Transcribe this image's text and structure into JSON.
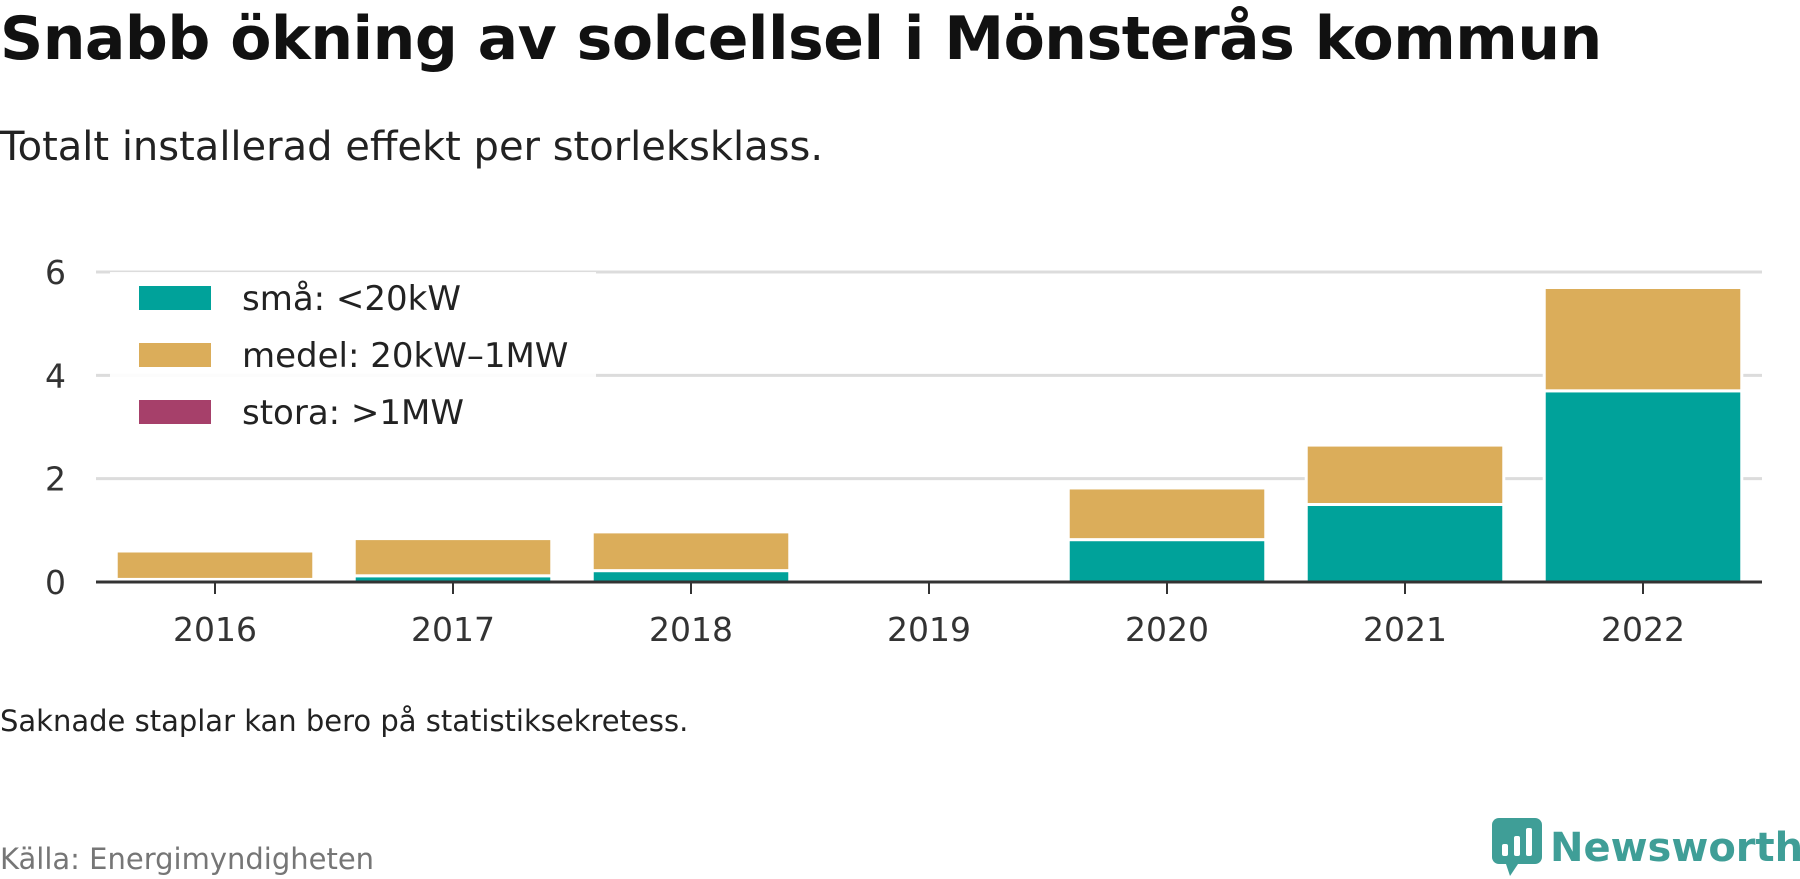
{
  "title": "Snabb ökning av solcellsel i Mönsterås kommun",
  "subtitle": "Totalt installerad effekt per storleksklass.",
  "note": "Saknade staplar kan bero på statistiksekretess.",
  "source": "Källa: Energimyndigheten",
  "brand": {
    "name": "Newsworthy",
    "icon": "newsworthy-logo-icon",
    "color": "#3f9e97"
  },
  "chart_data": {
    "type": "bar",
    "stacked": true,
    "categories": [
      "2016",
      "2017",
      "2018",
      "2019",
      "2020",
      "2021",
      "2022"
    ],
    "series": [
      {
        "name": "små: <20kW",
        "color": "#00a29a",
        "values": [
          0.05,
          0.12,
          0.22,
          null,
          0.82,
          1.5,
          3.7
        ]
      },
      {
        "name": "medel: 20kW–1MW",
        "color": "#dbad5a",
        "values": [
          0.55,
          0.72,
          0.75,
          null,
          1.0,
          1.15,
          2.0
        ]
      },
      {
        "name": "stora: >1MW",
        "color": "#a6406a",
        "values": [
          0,
          0,
          0,
          null,
          0,
          0,
          0
        ]
      }
    ],
    "ylim": [
      0,
      6
    ],
    "yticks": [
      0,
      2,
      4,
      6
    ],
    "grid": true,
    "legend_position": "top-left"
  }
}
